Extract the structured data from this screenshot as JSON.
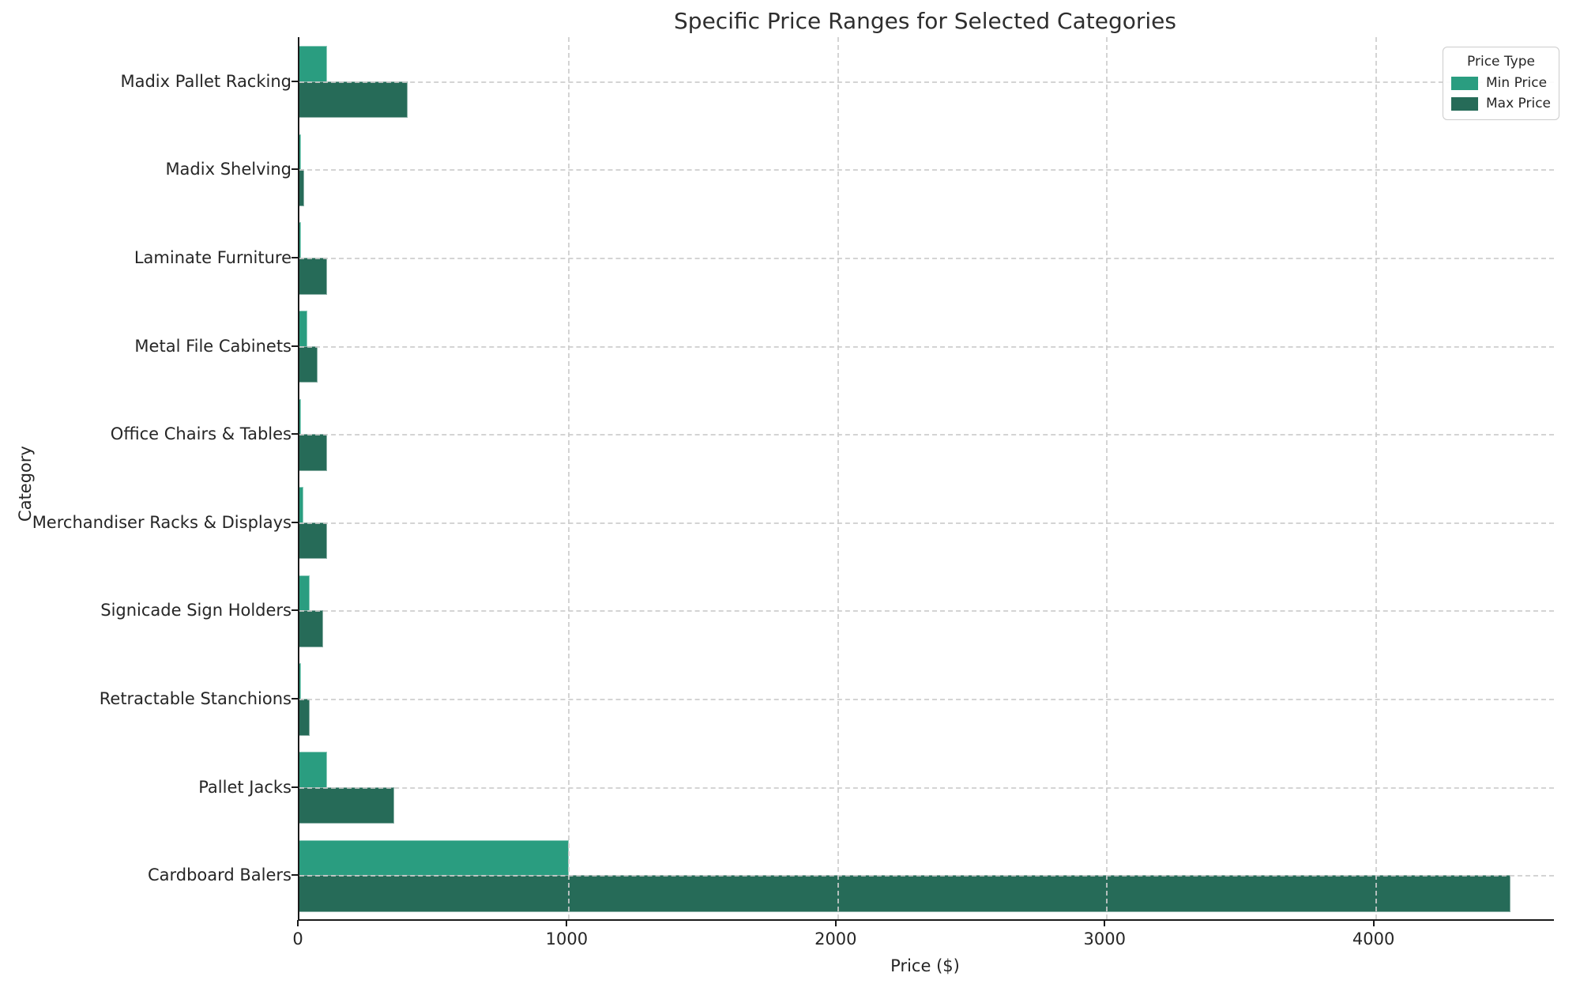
{
  "chart_data": {
    "type": "bar",
    "orientation": "horizontal",
    "title": "Specific Price Ranges for Selected Categories",
    "xlabel": "Price ($)",
    "ylabel": "Category",
    "categories": [
      "Madix Pallet Racking",
      "Madix Shelving",
      "Laminate Furniture",
      "Metal File Cabinets",
      "Office Chairs & Tables",
      "Merchandiser Racks & Displays",
      "Signicade Sign Holders",
      "Retractable Stanchions",
      "Pallet Jacks",
      "Cardboard Balers"
    ],
    "series": [
      {
        "name": "Min Price",
        "color": "#2a9d80",
        "values": [
          100,
          2,
          2,
          25,
          2,
          12,
          35,
          2,
          100,
          1000
        ]
      },
      {
        "name": "Max Price",
        "color": "#266b58",
        "values": [
          400,
          15,
          100,
          65,
          100,
          100,
          85,
          35,
          350,
          4500
        ]
      }
    ],
    "xlim": [
      0,
      4665
    ],
    "x_ticks": [
      0,
      1000,
      2000,
      3000,
      4000
    ],
    "grid": "dashed-both-axes",
    "background": "#ffffff",
    "legend": {
      "title": "Price Type",
      "position": "upper right"
    }
  }
}
